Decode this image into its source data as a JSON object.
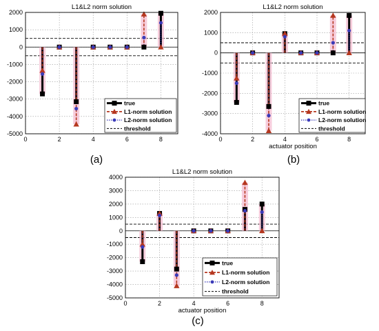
{
  "figure": {
    "captions": [
      "(a)",
      "(b)",
      "(c)"
    ]
  },
  "colors": {
    "true": "#000000",
    "l1": "#b5371f",
    "l2": "#3a3ab8",
    "halo": "#f4bcd0",
    "grid": "#9a9a9a",
    "threshold": "#000000"
  },
  "chart_data": [
    {
      "type": "scatter",
      "title": "L1&L2 norm solution",
      "xlabel": "",
      "ylabel": "",
      "xlim": [
        0,
        9
      ],
      "ylim": [
        -5000,
        2000
      ],
      "xticks": [
        "0",
        "2",
        "4",
        "6",
        "8"
      ],
      "yticks": [
        "-5000",
        "-4000",
        "-3000",
        "-2000",
        "-1000",
        "0",
        "1000",
        "2000"
      ],
      "grid": true,
      "legend_position": "bottom-right",
      "x": [
        1,
        2,
        3,
        4,
        5,
        6,
        7,
        8
      ],
      "series": [
        {
          "name": "true",
          "values": [
            -2700,
            0,
            -3150,
            0,
            0,
            0,
            0,
            1950
          ]
        },
        {
          "name": "L1-norm solution",
          "values": [
            -1350,
            0,
            -4450,
            0,
            0,
            0,
            1900,
            0
          ]
        },
        {
          "name": "L2-norm solution",
          "values": [
            -1550,
            0,
            -3550,
            0,
            0,
            0,
            550,
            1400
          ]
        },
        {
          "name": "threshold",
          "values": [
            500,
            -500
          ]
        }
      ]
    },
    {
      "type": "scatter",
      "title": "L1&L2 norm solution",
      "xlabel": "actuator position",
      "ylabel": "",
      "xlim": [
        0,
        9
      ],
      "ylim": [
        -4000,
        2000
      ],
      "xticks": [
        "0",
        "2",
        "4",
        "6",
        "8"
      ],
      "yticks": [
        "-4000",
        "-3000",
        "-2000",
        "-1000",
        "0",
        "1000",
        "2000"
      ],
      "grid": true,
      "legend_position": "bottom-right",
      "x": [
        1,
        2,
        3,
        4,
        5,
        6,
        7,
        8
      ],
      "series": [
        {
          "name": "true",
          "values": [
            -2450,
            0,
            -2650,
            950,
            0,
            0,
            0,
            1850
          ]
        },
        {
          "name": "L1-norm solution",
          "values": [
            -1250,
            0,
            -3850,
            950,
            0,
            0,
            1850,
            0
          ]
        },
        {
          "name": "L2-norm solution",
          "values": [
            -1500,
            0,
            -3100,
            800,
            0,
            0,
            500,
            1100
          ]
        },
        {
          "name": "threshold",
          "values": [
            500,
            -500
          ]
        }
      ]
    },
    {
      "type": "scatter",
      "title": "L1&L2 norm solution",
      "xlabel": "actuator position",
      "ylabel": "",
      "xlim": [
        0,
        9
      ],
      "ylim": [
        -5000,
        4000
      ],
      "xticks": [
        "0",
        "2",
        "4",
        "6",
        "8"
      ],
      "yticks": [
        "-5000",
        "-4000",
        "-3000",
        "-2000",
        "-1000",
        "0",
        "1000",
        "2000",
        "3000",
        "4000"
      ],
      "grid": true,
      "legend_position": "bottom-right",
      "x": [
        1,
        2,
        3,
        4,
        5,
        6,
        7,
        8
      ],
      "series": [
        {
          "name": "true",
          "values": [
            -2300,
            1300,
            -2850,
            0,
            0,
            0,
            1600,
            2000
          ]
        },
        {
          "name": "L1-norm solution",
          "values": [
            -1000,
            1300,
            -4100,
            0,
            0,
            0,
            3600,
            0
          ]
        },
        {
          "name": "L2-norm solution",
          "values": [
            -1200,
            1150,
            -3300,
            0,
            0,
            0,
            1500,
            1400
          ]
        },
        {
          "name": "threshold",
          "values": [
            500,
            -500
          ]
        }
      ]
    }
  ]
}
